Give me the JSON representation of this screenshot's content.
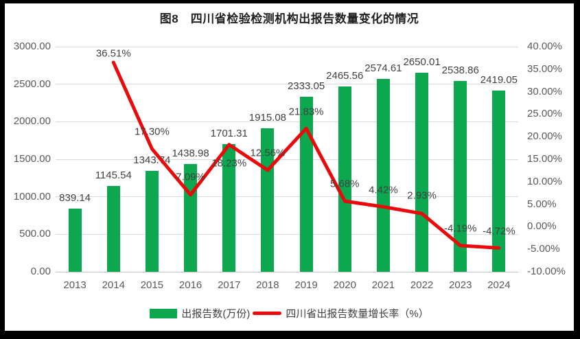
{
  "chart_data": {
    "type": "combo-bar-line",
    "title": "图8　四川省检验检测机构出报告数量变化的情况",
    "categories": [
      "2013",
      "2014",
      "2015",
      "2016",
      "2017",
      "2018",
      "2019",
      "2020",
      "2021",
      "2022",
      "2023",
      "2024"
    ],
    "series": [
      {
        "name": "出报告数(万份)",
        "type": "bar",
        "color": "#0CA84F",
        "axis": "left",
        "values": [
          839.14,
          1145.54,
          1343.74,
          1438.98,
          1701.31,
          1915.08,
          2333.05,
          2465.56,
          2574.61,
          2650.01,
          2538.86,
          2419.05
        ],
        "labels": [
          "839.14",
          "1145.54",
          "1343.74",
          "1438.98",
          "1701.31",
          "1915.08",
          "2333.05",
          "2465.56",
          "2574.61",
          "2650.01",
          "2538.86",
          "2419.05"
        ]
      },
      {
        "name": "四川省出报告数量增长率（%）",
        "type": "line",
        "color": "#E90A0B",
        "axis": "right",
        "values": [
          null,
          36.51,
          17.3,
          7.09,
          18.23,
          12.56,
          21.83,
          5.68,
          4.42,
          2.93,
          -4.19,
          -4.72
        ],
        "labels": [
          null,
          "36.51%",
          "17.30%",
          "7.09%",
          "18.23%",
          "12.56%",
          "21.83%",
          "5.68%",
          "4.42%",
          "2.93%",
          "-4.19%",
          "-4.72%"
        ],
        "label_dy": [
          null,
          -13,
          -25,
          -26,
          27,
          -25,
          -24,
          -25,
          -24,
          -26,
          -25,
          -24
        ]
      }
    ],
    "left_axis": {
      "min": 0,
      "max": 3000,
      "tick_labels": [
        "3000.00",
        "2500.00",
        "2000.00",
        "1500.00",
        "1000.00",
        "500.00",
        "0.00"
      ]
    },
    "right_axis": {
      "min": -10,
      "max": 40,
      "tick_labels": [
        "40.00%",
        "35.00%",
        "30.00%",
        "25.00%",
        "20.00%",
        "15.00%",
        "10.00%",
        "5.00%",
        "0.00%",
        "-5.00%",
        "-10.00%"
      ]
    },
    "grid": true,
    "legend_position": "bottom"
  },
  "colors": {
    "bar": "#0CA84F",
    "line": "#E90A0B",
    "grid": "#D9D9D9",
    "axis_line": "#BFBFBF",
    "tick_text": "#595959",
    "label_text": "#404040",
    "frame_border": "#000000",
    "background": "#FFFFFF"
  }
}
